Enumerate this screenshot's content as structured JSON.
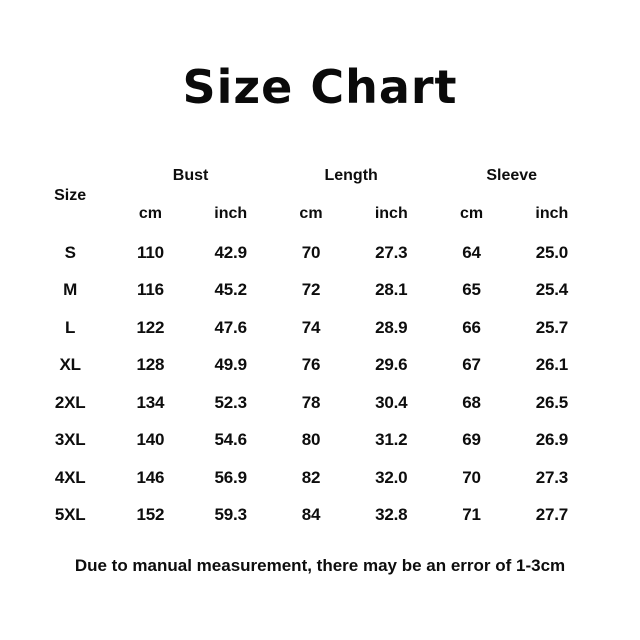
{
  "title": "Size Chart",
  "colors": {
    "background": "#ffffff",
    "text": "#0d0d0d"
  },
  "table": {
    "size_label": "Size",
    "groups": {
      "bust": "Bust",
      "length": "Length",
      "sleeve": "Sleeve"
    },
    "unit_cm": "cm",
    "unit_inch": "inch",
    "rows": [
      {
        "size": "S",
        "bust_cm": "110",
        "bust_inch": "42.9",
        "length_cm": "70",
        "length_inch": "27.3",
        "sleeve_cm": "64",
        "sleeve_inch": "25.0"
      },
      {
        "size": "M",
        "bust_cm": "116",
        "bust_inch": "45.2",
        "length_cm": "72",
        "length_inch": "28.1",
        "sleeve_cm": "65",
        "sleeve_inch": "25.4"
      },
      {
        "size": "L",
        "bust_cm": "122",
        "bust_inch": "47.6",
        "length_cm": "74",
        "length_inch": "28.9",
        "sleeve_cm": "66",
        "sleeve_inch": "25.7"
      },
      {
        "size": "XL",
        "bust_cm": "128",
        "bust_inch": "49.9",
        "length_cm": "76",
        "length_inch": "29.6",
        "sleeve_cm": "67",
        "sleeve_inch": "26.1"
      },
      {
        "size": "2XL",
        "bust_cm": "134",
        "bust_inch": "52.3",
        "length_cm": "78",
        "length_inch": "30.4",
        "sleeve_cm": "68",
        "sleeve_inch": "26.5"
      },
      {
        "size": "3XL",
        "bust_cm": "140",
        "bust_inch": "54.6",
        "length_cm": "80",
        "length_inch": "31.2",
        "sleeve_cm": "69",
        "sleeve_inch": "26.9"
      },
      {
        "size": "4XL",
        "bust_cm": "146",
        "bust_inch": "56.9",
        "length_cm": "82",
        "length_inch": "32.0",
        "sleeve_cm": "70",
        "sleeve_inch": "27.3"
      },
      {
        "size": "5XL",
        "bust_cm": "152",
        "bust_inch": "59.3",
        "length_cm": "84",
        "length_inch": "32.8",
        "sleeve_cm": "71",
        "sleeve_inch": "27.7"
      }
    ]
  },
  "footer_note": "Due to manual measurement, there may be an error of 1-3cm",
  "chart_data": {
    "type": "table",
    "title": "Size Chart",
    "columns": [
      "Size",
      "Bust cm",
      "Bust inch",
      "Length cm",
      "Length inch",
      "Sleeve cm",
      "Sleeve inch"
    ],
    "rows": [
      [
        "S",
        110,
        42.9,
        70,
        27.3,
        64,
        25.0
      ],
      [
        "M",
        116,
        45.2,
        72,
        28.1,
        65,
        25.4
      ],
      [
        "L",
        122,
        47.6,
        74,
        28.9,
        66,
        25.7
      ],
      [
        "XL",
        128,
        49.9,
        76,
        29.6,
        67,
        26.1
      ],
      [
        "2XL",
        134,
        52.3,
        78,
        30.4,
        68,
        26.5
      ],
      [
        "3XL",
        140,
        54.6,
        80,
        31.2,
        69,
        26.9
      ],
      [
        "4XL",
        146,
        56.9,
        82,
        32.0,
        70,
        27.3
      ],
      [
        "5XL",
        152,
        59.3,
        84,
        32.8,
        71,
        27.7
      ]
    ],
    "note": "Due to manual measurement, there may be an error of 1-3cm"
  }
}
